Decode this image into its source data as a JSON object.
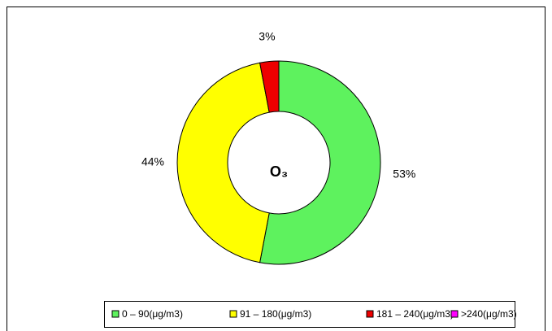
{
  "chart_data": {
    "type": "donut",
    "center_label": "O₃",
    "categories": [
      "0 – 90(μg/m3)",
      "91 – 180(μg/m3)",
      "181 – 240(μg/m3)",
      ">240(μg/m3)"
    ],
    "values": [
      53,
      44,
      3,
      0
    ],
    "value_labels": [
      "53%",
      "44%",
      "3%",
      null
    ],
    "colors": [
      "#5ef25e",
      "#ffff00",
      "#ee0000",
      "#ff00ff"
    ]
  }
}
